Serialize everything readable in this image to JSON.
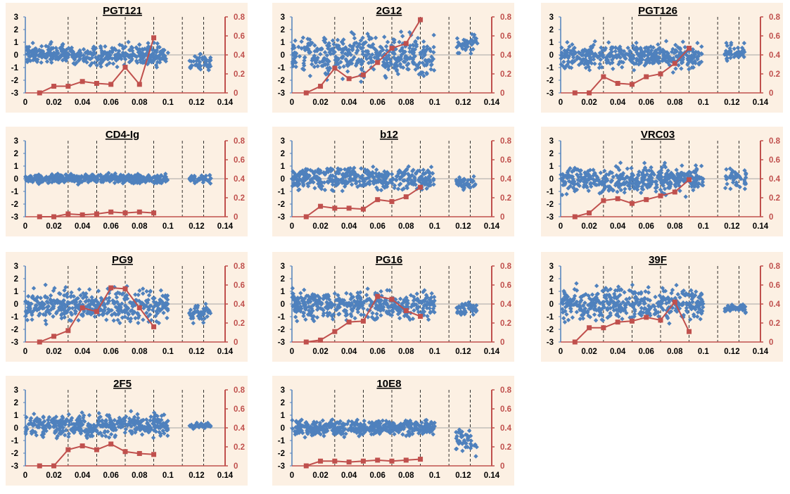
{
  "colors": {
    "scatter": "#4f81bd",
    "line": "#c0504d",
    "panel_bg": "#fcf0e3",
    "zero_line": "#a6a6a6",
    "divider": "#000000"
  },
  "chart_data": [
    {
      "type": "scatter+line",
      "title": "PGT121",
      "xlim": [
        0,
        0.14
      ],
      "xticks": [
        "0",
        "0.02",
        "0.04",
        "0.06",
        "0.08",
        "0.1",
        "0.12",
        "0.14"
      ],
      "ylim": [
        -3,
        3
      ],
      "yticks": [
        "-3",
        "-2",
        "-1",
        "0",
        "1",
        "2",
        "3"
      ],
      "y2lim": [
        0,
        0.8
      ],
      "y2ticks": [
        "0",
        "0.2",
        "0.4",
        "0.6",
        "0.8"
      ],
      "grid": "dashed vertical lines at 0.03, 0.05, 0.07, 0.09, 0.11, 0.125",
      "scatter_spread": {
        "main": {
          "x": [
            0.0,
            0.1
          ],
          "y": [
            -1.1,
            1.1
          ]
        },
        "cluster": {
          "x": [
            0.115,
            0.13
          ],
          "y": [
            -1.6,
            0.4
          ]
        }
      },
      "series": [
        {
          "x": [
            0.01,
            0.02,
            0.03,
            0.04,
            0.05,
            0.06,
            0.07,
            0.08,
            0.09
          ],
          "values": [
            0.0,
            0.07,
            0.07,
            0.12,
            0.1,
            0.09,
            0.27,
            0.09,
            0.58
          ]
        }
      ]
    },
    {
      "type": "scatter+line",
      "title": "2G12",
      "xlim": [
        0,
        0.14
      ],
      "xticks": [
        "0",
        "0.02",
        "0.04",
        "0.06",
        "0.08",
        "0.1",
        "0.12",
        "0.14"
      ],
      "ylim": [
        -3,
        3
      ],
      "yticks": [
        "-3",
        "-2",
        "-1",
        "0",
        "1",
        "2",
        "3"
      ],
      "y2lim": [
        0,
        0.8
      ],
      "y2ticks": [
        "0",
        "0.2",
        "0.4",
        "0.6",
        "0.8"
      ],
      "scatter_spread": {
        "main": {
          "x": [
            0.0,
            0.1
          ],
          "y": [
            -2.2,
            2.1
          ]
        },
        "cluster": {
          "x": [
            0.115,
            0.13
          ],
          "y": [
            -0.2,
            1.8
          ]
        }
      },
      "series": [
        {
          "x": [
            0.01,
            0.02,
            0.03,
            0.04,
            0.05,
            0.06,
            0.07,
            0.08,
            0.09
          ],
          "values": [
            0.0,
            0.07,
            0.26,
            0.15,
            0.19,
            0.32,
            0.47,
            0.52,
            0.77
          ]
        }
      ]
    },
    {
      "type": "scatter+line",
      "title": "PGT126",
      "xlim": [
        0,
        0.14
      ],
      "xticks": [
        "0",
        "0.02",
        "0.04",
        "0.06",
        "0.08",
        "0.1",
        "0.12",
        "0.14"
      ],
      "ylim": [
        -3,
        3
      ],
      "yticks": [
        "-3",
        "-2",
        "-1",
        "0",
        "1",
        "2",
        "3"
      ],
      "y2lim": [
        0,
        0.8
      ],
      "y2ticks": [
        "0",
        "0.2",
        "0.4",
        "0.6",
        "0.8"
      ],
      "scatter_spread": {
        "main": {
          "x": [
            0.0,
            0.1
          ],
          "y": [
            -1.5,
            1.3
          ]
        },
        "cluster": {
          "x": [
            0.115,
            0.13
          ],
          "y": [
            -0.8,
            1.2
          ]
        }
      },
      "series": [
        {
          "x": [
            0.01,
            0.02,
            0.03,
            0.04,
            0.05,
            0.06,
            0.07,
            0.08,
            0.09
          ],
          "values": [
            0.0,
            0.0,
            0.17,
            0.1,
            0.09,
            0.17,
            0.2,
            0.31,
            0.47
          ]
        }
      ]
    },
    {
      "type": "scatter+line",
      "title": "CD4-Ig",
      "xlim": [
        0,
        0.14
      ],
      "xticks": [
        "0",
        "0.02",
        "0.04",
        "0.06",
        "0.08",
        "0.1",
        "0.12",
        "0.14"
      ],
      "ylim": [
        -3,
        3
      ],
      "yticks": [
        "-3",
        "-2",
        "-1",
        "0",
        "1",
        "2",
        "3"
      ],
      "y2lim": [
        0,
        0.8
      ],
      "y2ticks": [
        "0",
        "0.2",
        "0.4",
        "0.6",
        "0.8"
      ],
      "scatter_spread": {
        "main": {
          "x": [
            0.0,
            0.1
          ],
          "y": [
            -0.5,
            0.5
          ]
        },
        "cluster": {
          "x": [
            0.115,
            0.13
          ],
          "y": [
            -0.5,
            0.5
          ]
        }
      },
      "series": [
        {
          "x": [
            0.01,
            0.02,
            0.03,
            0.04,
            0.05,
            0.06,
            0.07,
            0.08,
            0.09
          ],
          "values": [
            0.0,
            0.0,
            0.03,
            0.02,
            0.03,
            0.05,
            0.04,
            0.05,
            0.04
          ]
        }
      ]
    },
    {
      "type": "scatter+line",
      "title": "b12",
      "xlim": [
        0,
        0.14
      ],
      "xticks": [
        "0",
        "0.02",
        "0.04",
        "0.06",
        "0.08",
        "0.1",
        "0.12",
        "0.14"
      ],
      "ylim": [
        -3,
        3
      ],
      "yticks": [
        "-3",
        "-2",
        "-1",
        "0",
        "1",
        "2",
        "3"
      ],
      "y2lim": [
        0,
        0.8
      ],
      "y2ticks": [
        "0",
        "0.2",
        "0.4",
        "0.6",
        "0.8"
      ],
      "scatter_spread": {
        "main": {
          "x": [
            0.0,
            0.1
          ],
          "y": [
            -1.2,
            1.3
          ]
        },
        "cluster": {
          "x": [
            0.115,
            0.13
          ],
          "y": [
            -1.0,
            0.4
          ]
        }
      },
      "series": [
        {
          "x": [
            0.01,
            0.02,
            0.03,
            0.04,
            0.05,
            0.06,
            0.07,
            0.08,
            0.09
          ],
          "values": [
            0.0,
            0.11,
            0.09,
            0.09,
            0.08,
            0.18,
            0.16,
            0.21,
            0.31
          ]
        }
      ]
    },
    {
      "type": "scatter+line",
      "title": "VRC03",
      "xlim": [
        0,
        0.14
      ],
      "xticks": [
        "0",
        "0.02",
        "0.04",
        "0.06",
        "0.08",
        "0.1",
        "0.12",
        "0.14"
      ],
      "ylim": [
        -3,
        3
      ],
      "yticks": [
        "-3",
        "-2",
        "-1",
        "0",
        "1",
        "2",
        "3"
      ],
      "y2lim": [
        0,
        0.8
      ],
      "y2ticks": [
        "0",
        "0.2",
        "0.4",
        "0.6",
        "0.8"
      ],
      "scatter_spread": {
        "main": {
          "x": [
            0.0,
            0.1
          ],
          "y": [
            -1.6,
            1.5
          ]
        },
        "cluster": {
          "x": [
            0.115,
            0.13
          ],
          "y": [
            -1.3,
            1.1
          ]
        }
      },
      "series": [
        {
          "x": [
            0.01,
            0.02,
            0.03,
            0.04,
            0.05,
            0.06,
            0.07,
            0.08,
            0.09
          ],
          "values": [
            0.0,
            0.04,
            0.17,
            0.19,
            0.14,
            0.18,
            0.22,
            0.26,
            0.39
          ]
        }
      ]
    },
    {
      "type": "scatter+line",
      "title": "PG9",
      "xlim": [
        0,
        0.14
      ],
      "xticks": [
        "0",
        "0.02",
        "0.04",
        "0.06",
        "0.08",
        "0.1",
        "0.12",
        "0.14"
      ],
      "ylim": [
        -3,
        3
      ],
      "yticks": [
        "-3",
        "-2",
        "-1",
        "0",
        "1",
        "2",
        "3"
      ],
      "y2lim": [
        0,
        0.8
      ],
      "y2ticks": [
        "0",
        "0.2",
        "0.4",
        "0.6",
        "0.8"
      ],
      "scatter_spread": {
        "main": {
          "x": [
            0.0,
            0.1
          ],
          "y": [
            -1.9,
            1.6
          ]
        },
        "cluster": {
          "x": [
            0.115,
            0.13
          ],
          "y": [
            -1.8,
            0.3
          ]
        }
      },
      "series": [
        {
          "x": [
            0.01,
            0.02,
            0.03,
            0.04,
            0.05,
            0.06,
            0.07,
            0.08,
            0.09
          ],
          "values": [
            0.0,
            0.06,
            0.12,
            0.36,
            0.32,
            0.57,
            0.56,
            0.36,
            0.16
          ]
        }
      ]
    },
    {
      "type": "scatter+line",
      "title": "PG16",
      "xlim": [
        0,
        0.14
      ],
      "xticks": [
        "0",
        "0.02",
        "0.04",
        "0.06",
        "0.08",
        "0.1",
        "0.12",
        "0.14"
      ],
      "ylim": [
        -3,
        3
      ],
      "yticks": [
        "-3",
        "-2",
        "-1",
        "0",
        "1",
        "2",
        "3"
      ],
      "y2lim": [
        0,
        0.8
      ],
      "y2ticks": [
        "0",
        "0.2",
        "0.4",
        "0.6",
        "0.8"
      ],
      "scatter_spread": {
        "main": {
          "x": [
            0.0,
            0.1
          ],
          "y": [
            -1.8,
            1.6
          ]
        },
        "cluster": {
          "x": [
            0.115,
            0.13
          ],
          "y": [
            -1.2,
            0.4
          ]
        }
      },
      "series": [
        {
          "x": [
            0.01,
            0.02,
            0.03,
            0.04,
            0.05,
            0.06,
            0.07,
            0.08,
            0.09
          ],
          "values": [
            0.0,
            0.02,
            0.11,
            0.21,
            0.22,
            0.48,
            0.45,
            0.33,
            0.27
          ]
        }
      ]
    },
    {
      "type": "scatter+line",
      "title": "39F",
      "xlim": [
        0,
        0.14
      ],
      "xticks": [
        "0",
        "0.02",
        "0.04",
        "0.06",
        "0.08",
        "0.1",
        "0.12",
        "0.14"
      ],
      "ylim": [
        -3,
        3
      ],
      "yticks": [
        "-3",
        "-2",
        "-1",
        "0",
        "1",
        "2",
        "3"
      ],
      "y2lim": [
        0,
        0.8
      ],
      "y2ticks": [
        "0",
        "0.2",
        "0.4",
        "0.6",
        "0.8"
      ],
      "scatter_spread": {
        "main": {
          "x": [
            0.0,
            0.1
          ],
          "y": [
            -1.8,
            1.8
          ]
        },
        "cluster": {
          "x": [
            0.115,
            0.13
          ],
          "y": [
            -0.8,
            0.1
          ]
        }
      },
      "series": [
        {
          "x": [
            0.01,
            0.02,
            0.03,
            0.04,
            0.05,
            0.06,
            0.07,
            0.08,
            0.09
          ],
          "values": [
            0.0,
            0.15,
            0.15,
            0.21,
            0.22,
            0.26,
            0.23,
            0.42,
            0.11
          ]
        }
      ]
    },
    {
      "type": "scatter+line",
      "title": "2F5",
      "xlim": [
        0,
        0.14
      ],
      "xticks": [
        "0",
        "0.02",
        "0.04",
        "0.06",
        "0.08",
        "0.1",
        "0.12",
        "0.14"
      ],
      "ylim": [
        -3,
        3
      ],
      "yticks": [
        "-3",
        "-2",
        "-1",
        "0",
        "1",
        "2",
        "3"
      ],
      "y2lim": [
        0,
        0.8
      ],
      "y2ticks": [
        "0",
        "0.2",
        "0.4",
        "0.6",
        "0.8"
      ],
      "scatter_spread": {
        "main": {
          "x": [
            0.0,
            0.1
          ],
          "y": [
            -1.0,
            1.4
          ]
        },
        "cluster": {
          "x": [
            0.115,
            0.13
          ],
          "y": [
            -0.2,
            0.5
          ]
        }
      },
      "series": [
        {
          "x": [
            0.01,
            0.02,
            0.03,
            0.04,
            0.05,
            0.06,
            0.07,
            0.08,
            0.09
          ],
          "values": [
            0.0,
            0.0,
            0.17,
            0.21,
            0.17,
            0.23,
            0.15,
            0.13,
            0.12
          ]
        }
      ]
    },
    {
      "type": "scatter+line",
      "title": "10E8",
      "xlim": [
        0,
        0.14
      ],
      "xticks": [
        "0",
        "0.02",
        "0.04",
        "0.06",
        "0.08",
        "0.1",
        "0.12",
        "0.14"
      ],
      "ylim": [
        -3,
        3
      ],
      "yticks": [
        "-3",
        "-2",
        "-1",
        "0",
        "1",
        "2",
        "3"
      ],
      "y2lim": [
        0,
        0.8
      ],
      "y2ticks": [
        "0",
        "0.2",
        "0.4",
        "0.6",
        "0.8"
      ],
      "scatter_spread": {
        "main": {
          "x": [
            0.0,
            0.1
          ],
          "y": [
            -0.8,
            0.8
          ]
        },
        "cluster": {
          "x": [
            0.115,
            0.13
          ],
          "y": [
            -2.5,
            0.4
          ]
        }
      },
      "series": [
        {
          "x": [
            0.01,
            0.02,
            0.03,
            0.04,
            0.05,
            0.06,
            0.07,
            0.08,
            0.09
          ],
          "values": [
            0.0,
            0.05,
            0.05,
            0.04,
            0.05,
            0.06,
            0.05,
            0.06,
            0.07
          ]
        }
      ]
    }
  ]
}
